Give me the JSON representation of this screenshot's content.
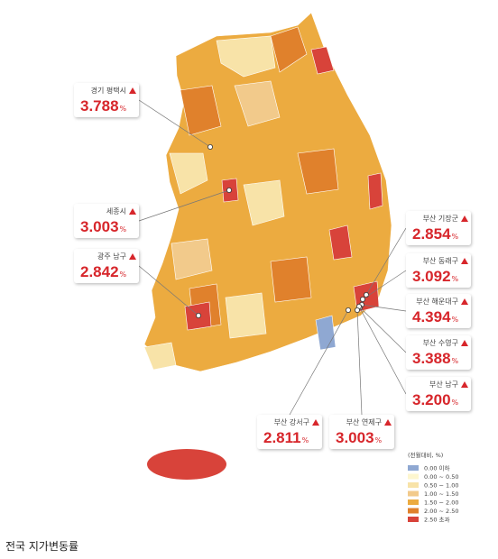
{
  "callouts": [
    {
      "name": "경기 평택시",
      "value": "3.788"
    },
    {
      "name": "세종시",
      "value": "3.003"
    },
    {
      "name": "광주 남구",
      "value": "2.842"
    },
    {
      "name": "부산 기장군",
      "value": "2.854"
    },
    {
      "name": "부산 동래구",
      "value": "3.092"
    },
    {
      "name": "부산 해운대구",
      "value": "4.394"
    },
    {
      "name": "부산 수영구",
      "value": "3.388"
    },
    {
      "name": "부산 남구",
      "value": "3.200"
    },
    {
      "name": "부산 강서구",
      "value": "2.811"
    },
    {
      "name": "부산 연제구",
      "value": "3.003"
    }
  ],
  "unit": "%",
  "legend": {
    "title": "(전월대비, %)",
    "items": [
      {
        "label": "0.00 이하",
        "color": "#8fa8d2"
      },
      {
        "label": "0.00 ~ 0.50",
        "color": "#fdf6cf"
      },
      {
        "label": "0.50 ~ 1.00",
        "color": "#f8e3a8"
      },
      {
        "label": "1.00 ~ 1.50",
        "color": "#f2ca8b"
      },
      {
        "label": "1.50 ~ 2.00",
        "color": "#ecab40"
      },
      {
        "label": "2.00 ~ 2.50",
        "color": "#e0812c"
      },
      {
        "label": "2.50 초과",
        "color": "#d8433a"
      }
    ]
  },
  "caption": "전국 지가변동률"
}
